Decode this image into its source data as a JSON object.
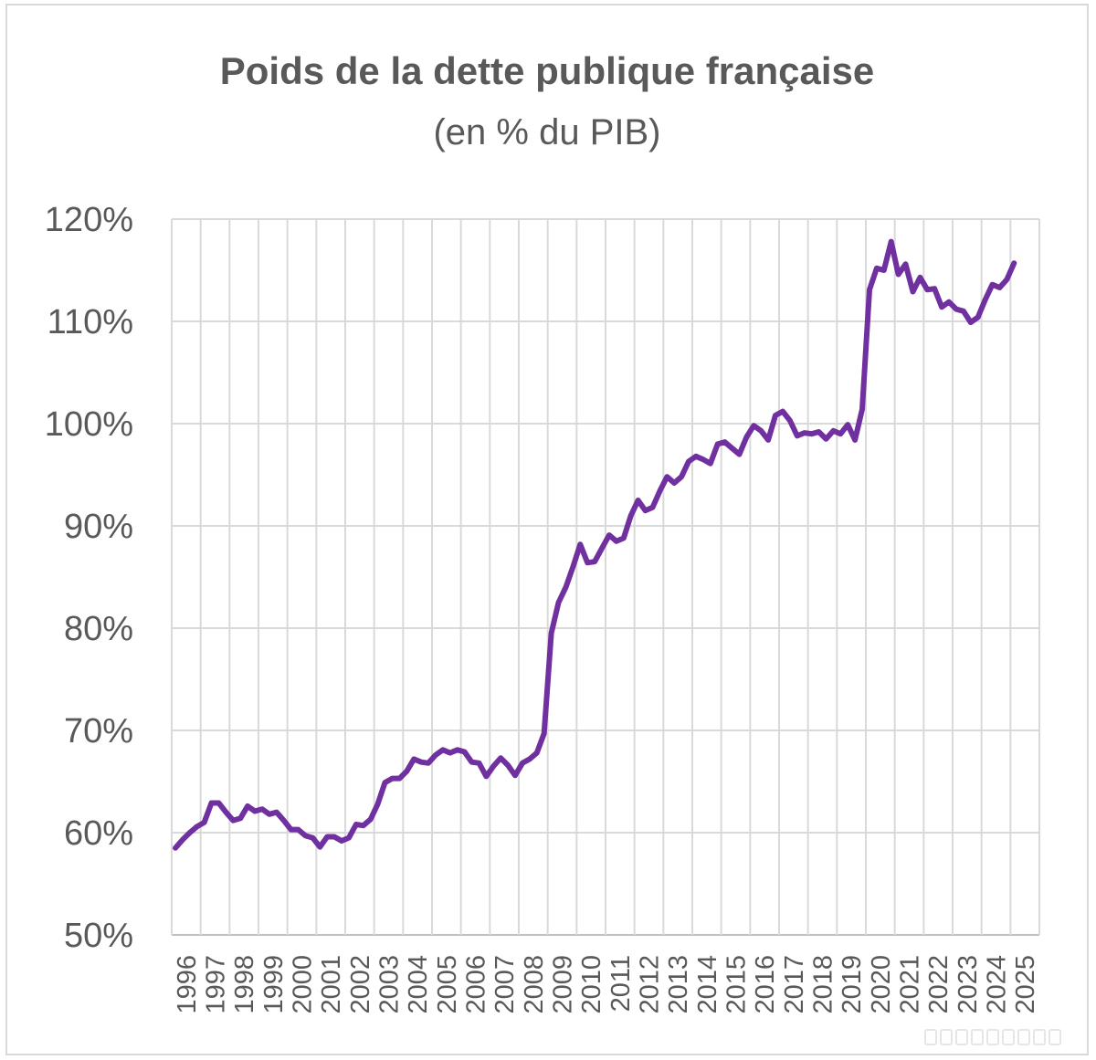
{
  "chart_data": {
    "type": "line",
    "title": "Poids de la dette publique française",
    "subtitle": "(en % du PIB)",
    "xlabel": "",
    "ylabel": "",
    "ylim": [
      50,
      120
    ],
    "yticks": [
      "120%",
      "110%",
      "100%",
      "90%",
      "80%",
      "70%",
      "60%",
      "50%"
    ],
    "yticks_values": [
      120,
      110,
      100,
      90,
      80,
      70,
      60,
      50
    ],
    "xticks": [
      "1996",
      "1997",
      "1998",
      "1999",
      "2000",
      "2001",
      "2002",
      "2003",
      "2004",
      "2005",
      "2006",
      "2007",
      "2008",
      "2009",
      "2010",
      "2011",
      "2012",
      "2013",
      "2014",
      "2015",
      "2016",
      "2017",
      "2018",
      "2019",
      "2020",
      "2021",
      "2022",
      "2023",
      "2024",
      "2025"
    ],
    "grid": true,
    "legend": "none",
    "line_color": "#7030a0",
    "series": [
      {
        "x": [
          1996.0,
          1996.25,
          1996.5,
          1996.75,
          1997.0,
          1997.25,
          1997.5,
          1997.75,
          1998.0,
          1998.25,
          1998.5,
          1998.75,
          1999.0,
          1999.25,
          1999.5,
          1999.75,
          2000.0,
          2000.25,
          2000.5,
          2000.75,
          2001.0,
          2001.25,
          2001.5,
          2001.75,
          2002.0,
          2002.25,
          2002.5,
          2002.75,
          2003.0,
          2003.25,
          2003.5,
          2003.75,
          2004.0,
          2004.25,
          2004.5,
          2004.75,
          2005.0,
          2005.25,
          2005.5,
          2005.75,
          2006.0,
          2006.25,
          2006.5,
          2006.75,
          2007.0,
          2007.25,
          2007.5,
          2007.75,
          2008.0,
          2008.25,
          2008.5,
          2008.75,
          2009.0,
          2009.25,
          2009.5,
          2009.75,
          2010.0,
          2010.25,
          2010.5,
          2010.75,
          2011.0,
          2011.25,
          2011.5,
          2011.75,
          2012.0,
          2012.25,
          2012.5,
          2012.75,
          2013.0,
          2013.25,
          2013.5,
          2013.75,
          2014.0,
          2014.25,
          2014.5,
          2014.75,
          2015.0,
          2015.25,
          2015.5,
          2015.75,
          2016.0,
          2016.25,
          2016.5,
          2016.75,
          2017.0,
          2017.25,
          2017.5,
          2017.75,
          2018.0,
          2018.25,
          2018.5,
          2018.75,
          2019.0,
          2019.25,
          2019.5,
          2019.75,
          2020.0,
          2020.25,
          2020.5,
          2020.75,
          2021.0,
          2021.25,
          2021.5,
          2021.75,
          2022.0,
          2022.25,
          2022.5,
          2022.75,
          2023.0,
          2023.25,
          2023.5,
          2023.75,
          2024.0,
          2024.25,
          2024.5,
          2024.75,
          2025.0
        ],
        "values": [
          58.5,
          59.3,
          60.0,
          60.6,
          61.0,
          62.9,
          62.9,
          62.0,
          61.2,
          61.4,
          62.6,
          62.1,
          62.3,
          61.8,
          62.0,
          61.2,
          60.3,
          60.3,
          59.7,
          59.5,
          58.6,
          59.6,
          59.6,
          59.2,
          59.5,
          60.8,
          60.7,
          61.3,
          62.8,
          64.9,
          65.3,
          65.3,
          66.0,
          67.2,
          66.9,
          66.8,
          67.6,
          68.1,
          67.8,
          68.1,
          67.9,
          66.9,
          66.8,
          65.5,
          66.5,
          67.3,
          66.6,
          65.6,
          66.8,
          67.2,
          67.8,
          69.7,
          79.5,
          82.5,
          84.0,
          86.0,
          88.2,
          86.4,
          86.5,
          87.8,
          89.1,
          88.5,
          88.8,
          91.0,
          92.5,
          91.5,
          91.8,
          93.4,
          94.8,
          94.2,
          94.8,
          96.3,
          96.8,
          96.5,
          96.1,
          98.0,
          98.2,
          97.6,
          97.0,
          98.7,
          99.8,
          99.3,
          98.4,
          100.8,
          101.2,
          100.3,
          98.8,
          99.1,
          99.0,
          99.2,
          98.5,
          99.3,
          99.0,
          99.9,
          98.4,
          101.4,
          113.1,
          115.2,
          115.0,
          117.8,
          114.6,
          115.6,
          112.9,
          114.3,
          113.1,
          113.2,
          111.4,
          111.9,
          111.2,
          111.0,
          109.9,
          110.4,
          112.1,
          113.6,
          113.3,
          114.1,
          115.7
        ]
      }
    ]
  }
}
